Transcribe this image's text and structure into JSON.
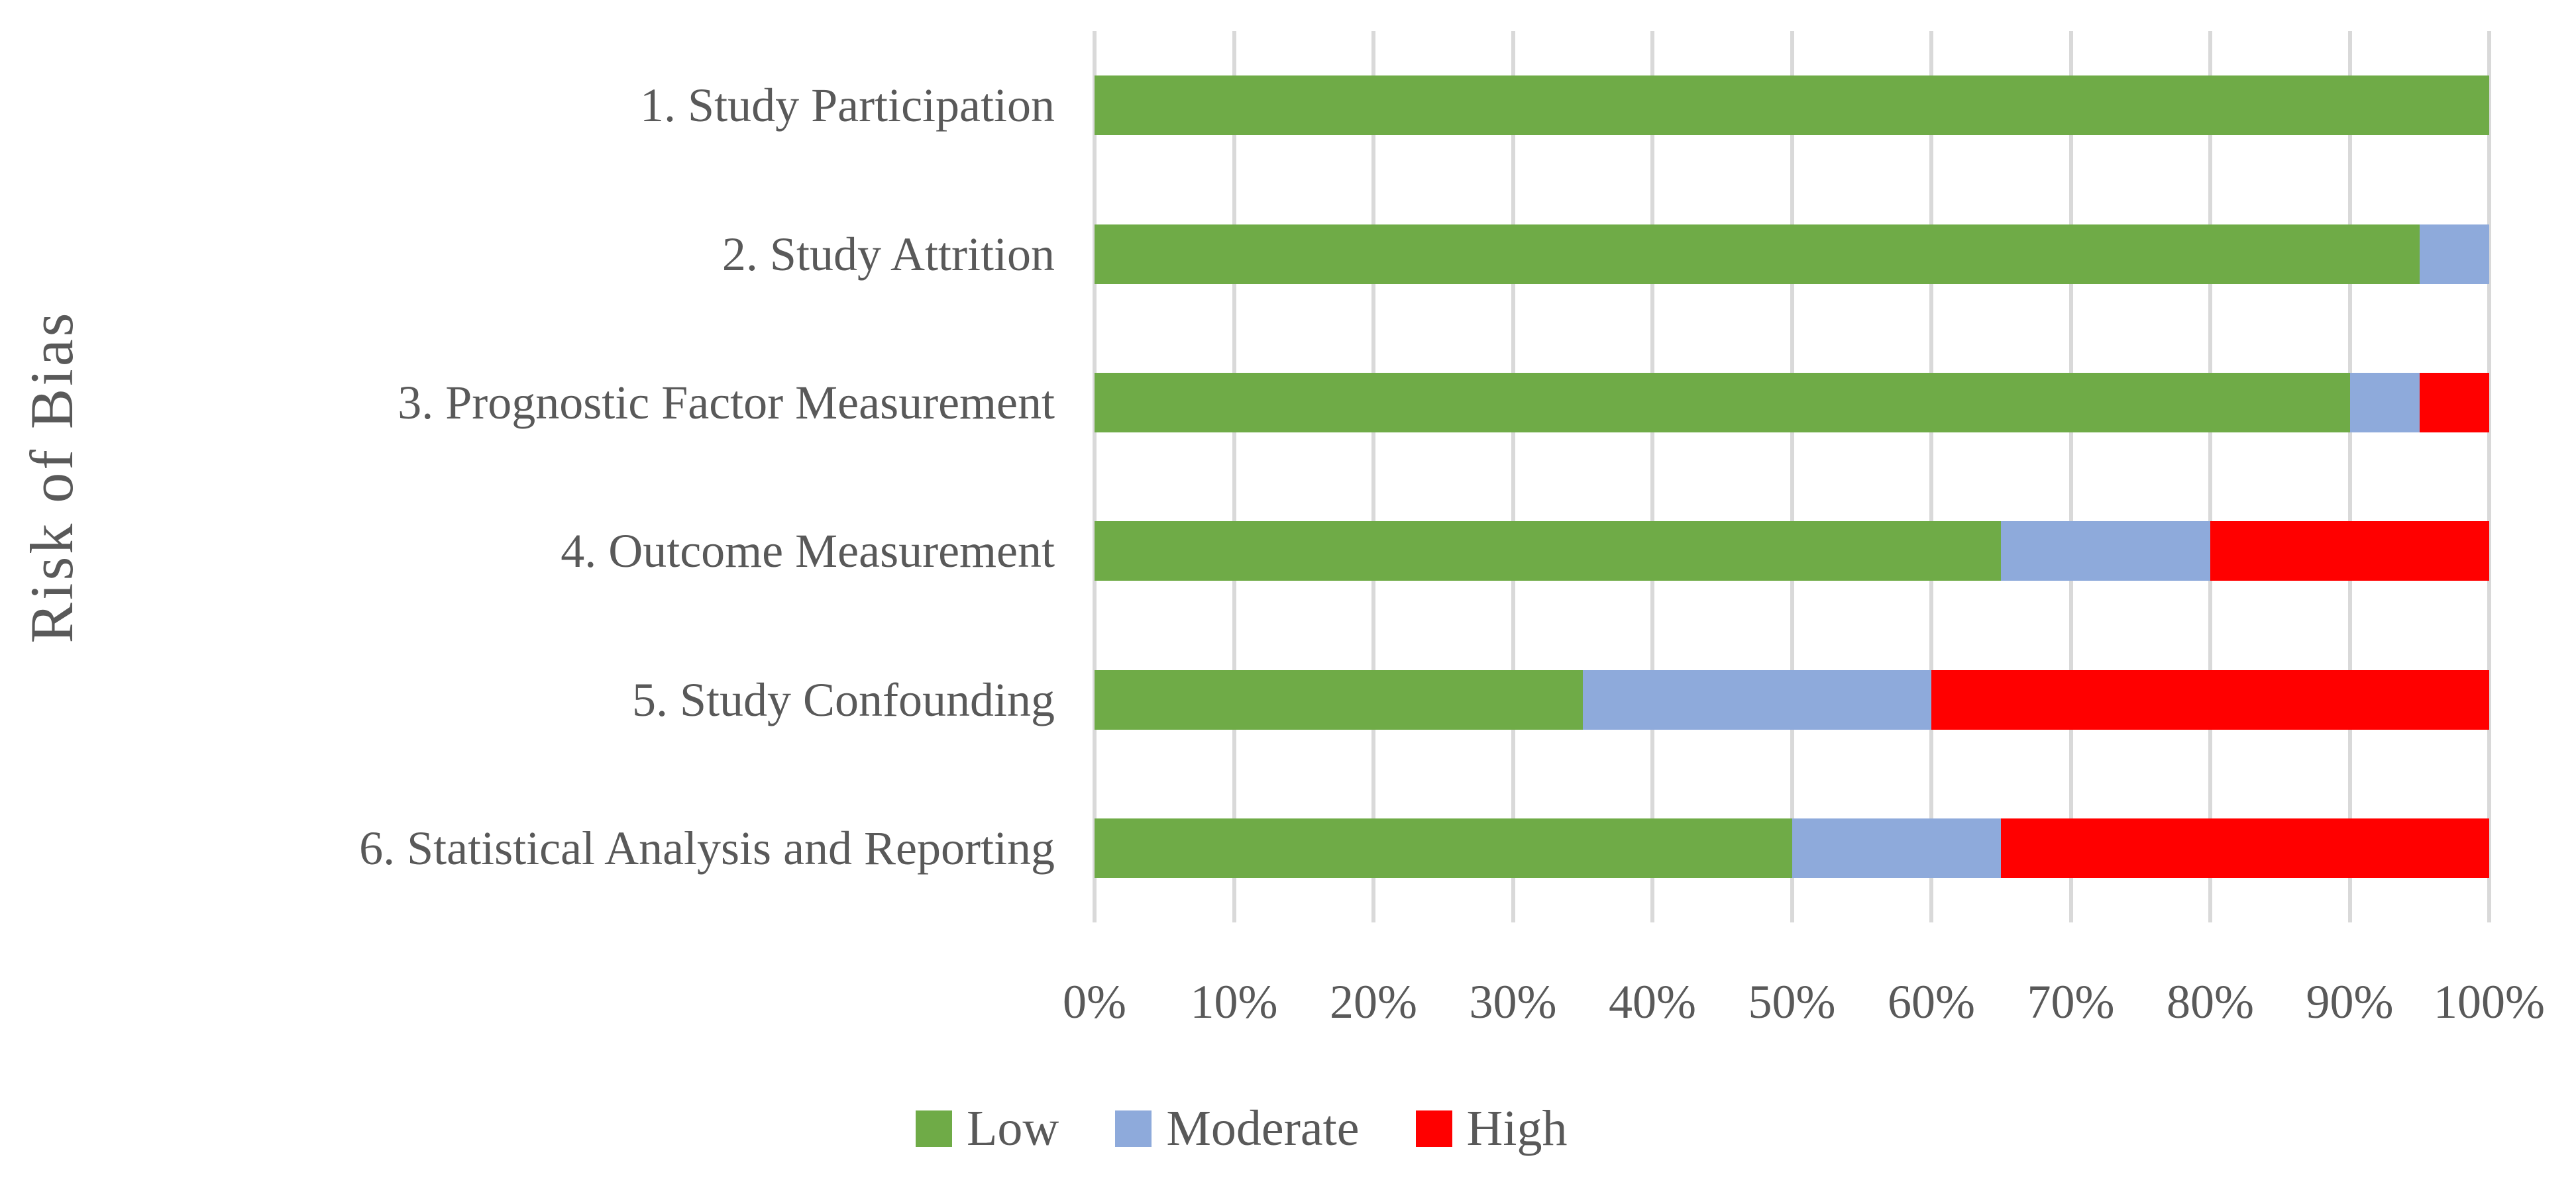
{
  "chart_data": {
    "type": "bar",
    "orientation": "horizontal-stacked",
    "title": "",
    "xlabel": "",
    "ylabel": "Risk of Bias",
    "xlim": [
      0,
      100
    ],
    "grid": "vertical",
    "x_ticks": [
      "0%",
      "10%",
      "20%",
      "30%",
      "40%",
      "50%",
      "60%",
      "70%",
      "80%",
      "90%",
      "100%"
    ],
    "categories": [
      "1. Study Participation",
      "2. Study Attrition",
      "3. Prognostic Factor Measurement",
      "4. Outcome Measurement",
      "5. Study Confounding",
      "6. Statistical Analysis and Reporting"
    ],
    "series": [
      {
        "name": "Low",
        "color": "#6FAB47",
        "values": [
          100,
          95,
          90,
          65,
          35,
          50
        ]
      },
      {
        "name": "Moderate",
        "color": "#8EAADB",
        "values": [
          0,
          5,
          5,
          15,
          25,
          15
        ]
      },
      {
        "name": "High",
        "color": "#FF0000",
        "values": [
          0,
          0,
          5,
          20,
          40,
          35
        ]
      }
    ],
    "legend": {
      "position": "bottom",
      "entries": [
        "Low",
        "Moderate",
        "High"
      ]
    },
    "colors": {
      "low": "#6FAB47",
      "moderate": "#8EAADB",
      "high": "#FF0000",
      "gridline": "#D9D9D9",
      "text": "#595959",
      "background": "#FFFFFF"
    }
  }
}
